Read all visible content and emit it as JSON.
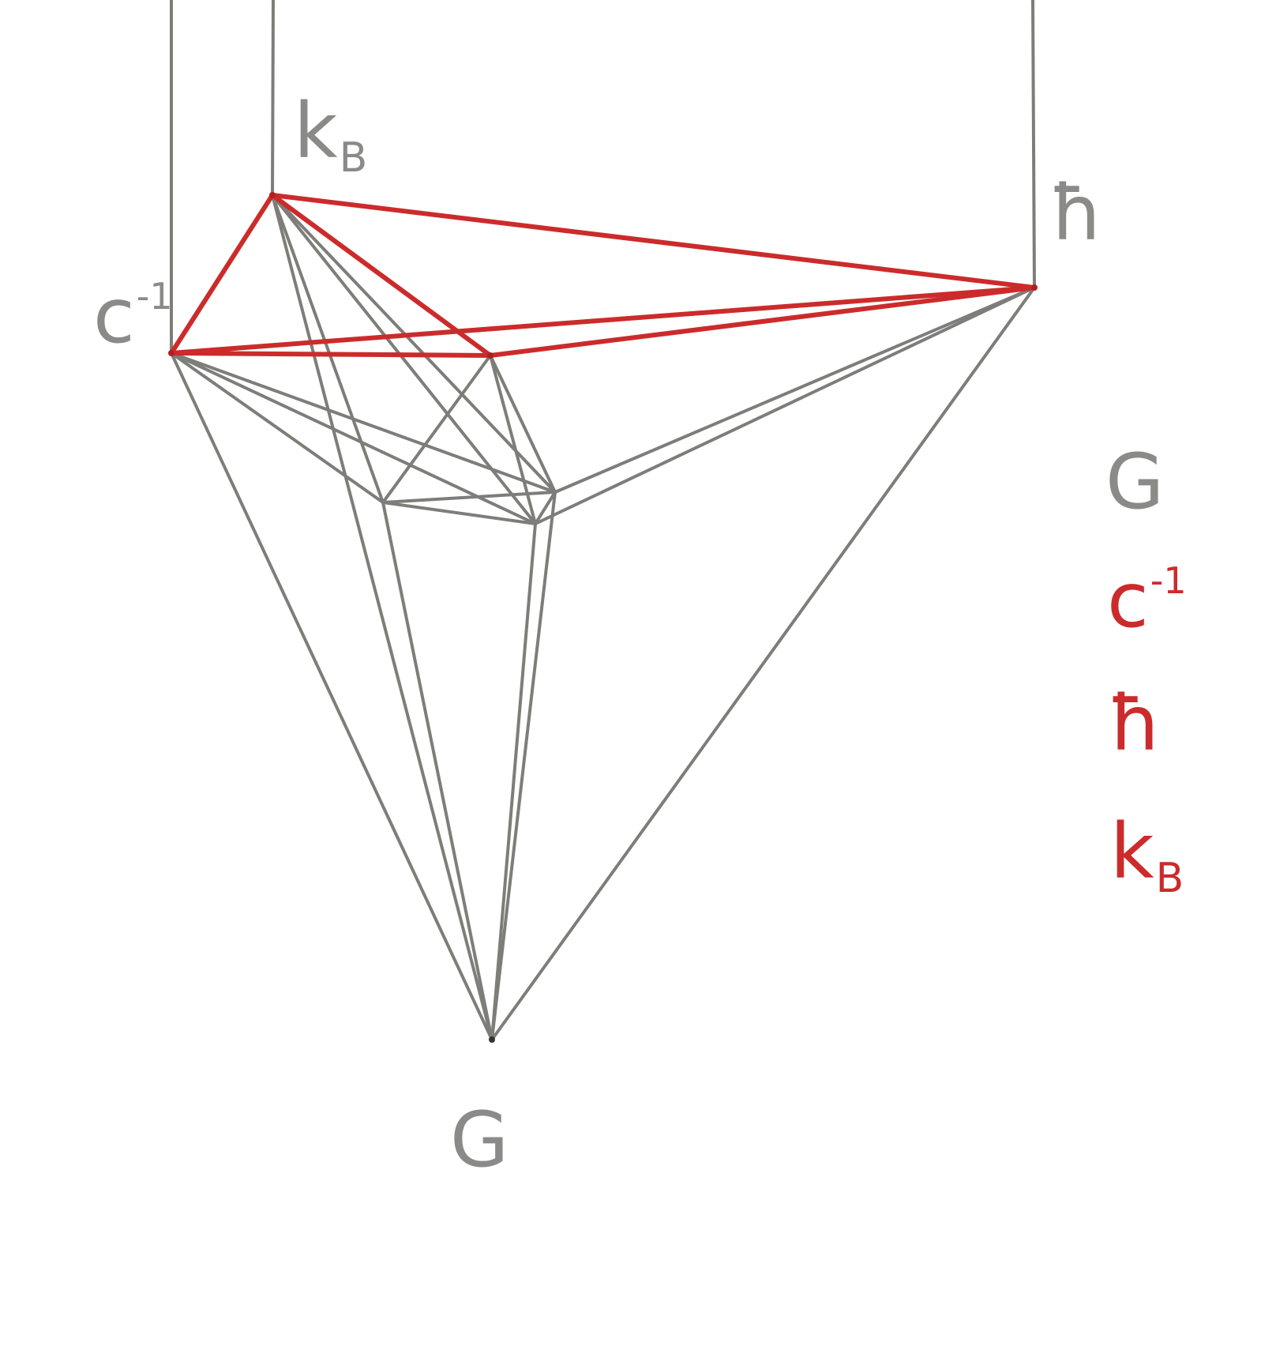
{
  "colors": {
    "gray": "#8a8a88",
    "red": "#cc2b2b",
    "background": "#ffffff"
  },
  "vertex_labels": {
    "kB": {
      "base": "k",
      "sub": "B"
    },
    "hbar": {
      "base": "ħ"
    },
    "c_inv": {
      "base": "c",
      "sup": "-1"
    },
    "G": {
      "base": "G"
    }
  },
  "legend": {
    "G": {
      "base": "G"
    },
    "c_inv": {
      "base": "c",
      "sup": "-1"
    },
    "hbar": {
      "base": "ħ"
    },
    "kB": {
      "base": "k",
      "sub": "B"
    }
  }
}
